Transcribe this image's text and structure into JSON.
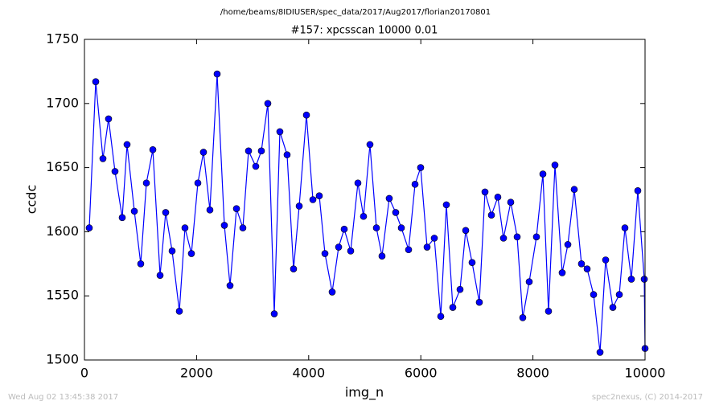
{
  "chart_data": {
    "type": "line",
    "suptitle": "/home/beams/8IDIUSER/spec_data/2017/Aug2017/florian20170801",
    "title": "#157: xpcsscan 10000 0.01",
    "xlabel": "img_n",
    "ylabel": "ccdc",
    "footer_left": "Wed Aug 02 13:45:38 2017",
    "footer_right": "spec2nexus, (C) 2014-2017",
    "color": "#0000ff",
    "marker": "circle",
    "xlim": [
      0,
      10000
    ],
    "xticks": [
      0,
      2000,
      4000,
      6000,
      8000,
      10000
    ],
    "ylim": [
      1500,
      1750
    ],
    "yticks": [
      1500,
      1550,
      1600,
      1650,
      1700,
      1750
    ],
    "x": [
      86,
      201,
      330,
      430,
      545,
      674,
      760,
      890,
      1004,
      1105,
      1220,
      1349,
      1449,
      1564,
      1693,
      1793,
      1908,
      2023,
      2123,
      2238,
      2367,
      2496,
      2597,
      2712,
      2826,
      2927,
      3056,
      3156,
      3271,
      3386,
      3486,
      3615,
      3730,
      3831,
      3960,
      4075,
      4189,
      4290,
      4419,
      4534,
      4634,
      4749,
      4878,
      4978,
      5093,
      5208,
      5308,
      5437,
      5552,
      5653,
      5782,
      5897,
      5997,
      6112,
      6241,
      6356,
      6456,
      6571,
      6700,
      6801,
      6915,
      7044,
      7145,
      7260,
      7374,
      7475,
      7604,
      7719,
      7819,
      7934,
      8063,
      8178,
      8278,
      8393,
      8522,
      8623,
      8737,
      8866,
      8967,
      9082,
      9197,
      9297,
      9426,
      9541,
      9641,
      9756,
      9871,
      9986,
      10000
    ],
    "values": [
      1603,
      1717,
      1657,
      1688,
      1647,
      1611,
      1668,
      1616,
      1575,
      1638,
      1664,
      1566,
      1615,
      1585,
      1538,
      1603,
      1583,
      1638,
      1662,
      1617,
      1723,
      1605,
      1558,
      1618,
      1603,
      1663,
      1651,
      1663,
      1700,
      1536,
      1678,
      1660,
      1571,
      1620,
      1691,
      1625,
      1628,
      1583,
      1553,
      1588,
      1602,
      1585,
      1638,
      1612,
      1668,
      1603,
      1581,
      1626,
      1615,
      1603,
      1586,
      1637,
      1650,
      1588,
      1595,
      1534,
      1621,
      1541,
      1555,
      1601,
      1576,
      1545,
      1631,
      1613,
      1627,
      1595,
      1623,
      1596,
      1533,
      1561,
      1596,
      1645,
      1538,
      1652,
      1568,
      1590,
      1633,
      1575,
      1571,
      1551,
      1506,
      1578,
      1541,
      1551,
      1603,
      1563,
      1632,
      1563,
      1509
    ]
  }
}
